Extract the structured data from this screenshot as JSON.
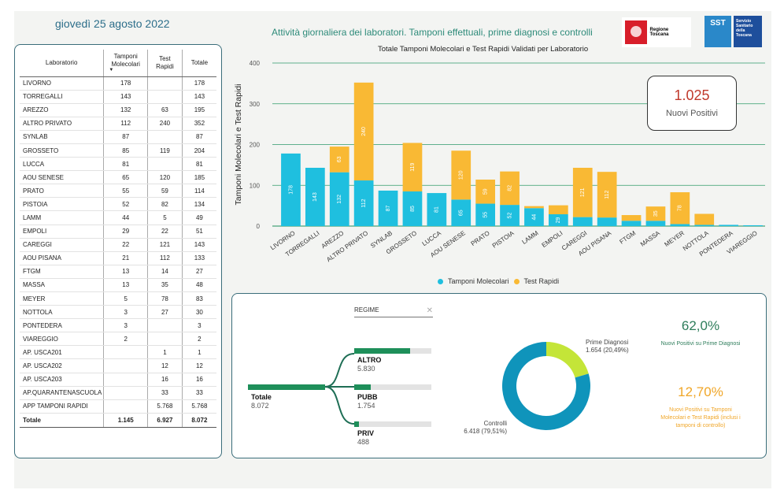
{
  "header": {
    "date": "giovedì 25 agosto 2022",
    "title": "Attività giornaliera dei laboratori. Tamponi effettuali, prime diagnosi e controlli",
    "logo_rt_text": "Regione Toscana",
    "logo_sst_text": "SST",
    "logo_sst_sub": "Servizio Sanitario della Toscana"
  },
  "table": {
    "headers": [
      "Laboratorio",
      "Tamponi Molecolari",
      "Test Rapidi",
      "Totale"
    ],
    "rows": [
      [
        "LIVORNO",
        "178",
        "",
        "178"
      ],
      [
        "TORREGALLI",
        "143",
        "",
        "143"
      ],
      [
        "AREZZO",
        "132",
        "63",
        "195"
      ],
      [
        "ALTRO PRIVATO",
        "112",
        "240",
        "352"
      ],
      [
        "SYNLAB",
        "87",
        "",
        "87"
      ],
      [
        "GROSSETO",
        "85",
        "119",
        "204"
      ],
      [
        "LUCCA",
        "81",
        "",
        "81"
      ],
      [
        "AOU SENESE",
        "65",
        "120",
        "185"
      ],
      [
        "PRATO",
        "55",
        "59",
        "114"
      ],
      [
        "PISTOIA",
        "52",
        "82",
        "134"
      ],
      [
        "LAMM",
        "44",
        "5",
        "49"
      ],
      [
        "EMPOLI",
        "29",
        "22",
        "51"
      ],
      [
        "CAREGGI",
        "22",
        "121",
        "143"
      ],
      [
        "AOU PISANA",
        "21",
        "112",
        "133"
      ],
      [
        "FTGM",
        "13",
        "14",
        "27"
      ],
      [
        "MASSA",
        "13",
        "35",
        "48"
      ],
      [
        "MEYER",
        "5",
        "78",
        "83"
      ],
      [
        "NOTTOLA",
        "3",
        "27",
        "30"
      ],
      [
        "PONTEDERA",
        "3",
        "",
        "3"
      ],
      [
        "VIAREGGIO",
        "2",
        "",
        "2"
      ],
      [
        "AP. USCA201",
        "",
        "1",
        "1"
      ],
      [
        "AP. USCA202",
        "",
        "12",
        "12"
      ],
      [
        "AP. USCA203",
        "",
        "16",
        "16"
      ],
      [
        "AP.QUARANTENASCUOLA",
        "",
        "33",
        "33"
      ],
      [
        "APP TAMPONI RAPIDI",
        "",
        "5.768",
        "5.768"
      ]
    ],
    "total": [
      "Totale",
      "1.145",
      "6.927",
      "8.072"
    ]
  },
  "kpi": {
    "value": "1.025",
    "label": "Nuovi Positivi"
  },
  "chart_data": {
    "type": "bar",
    "title": "Totale Tamponi Molecolari e Test Rapidi Validati per Laboratorio",
    "ylabel": "Tamponi Molecolari e Test Rapidi",
    "ylim": [
      0,
      400
    ],
    "yticks": [
      "0",
      "100",
      "200",
      "300",
      "400"
    ],
    "categories": [
      "LIVORNO",
      "TORREGALLI",
      "AREZZO",
      "ALTRO PRIVATO",
      "SYNLAB",
      "GROSSETO",
      "LUCCA",
      "AOU SENESE",
      "PRATO",
      "PISTOIA",
      "LAMM",
      "EMPOLI",
      "CAREGGI",
      "AOU PISANA",
      "FTGM",
      "MASSA",
      "MEYER",
      "NOTTOLA",
      "PONTEDERA",
      "VIAREGGIO"
    ],
    "stacked": true,
    "series": [
      {
        "name": "Tamponi Molecolari",
        "color": "#1fbfdf",
        "values": [
          178,
          143,
          132,
          112,
          87,
          85,
          81,
          65,
          55,
          52,
          44,
          29,
          22,
          21,
          13,
          13,
          5,
          3,
          3,
          2
        ]
      },
      {
        "name": "Test Rapidi",
        "color": "#f9b934",
        "values": [
          0,
          0,
          63,
          240,
          0,
          119,
          0,
          120,
          59,
          82,
          5,
          22,
          121,
          112,
          14,
          35,
          78,
          27,
          0,
          0
        ]
      }
    ],
    "legend": "bottom"
  },
  "decomposition": {
    "filter_label": "REGIME",
    "root": {
      "label": "Totale",
      "value": "8.072"
    },
    "children": [
      {
        "label": "ALTRO",
        "value": "5.830",
        "share": 0.722
      },
      {
        "label": "PUBB",
        "value": "1.754",
        "share": 0.217
      },
      {
        "label": "PRIV",
        "value": "488",
        "share": 0.06
      }
    ]
  },
  "donut": {
    "segments": [
      {
        "name": "Prime Diagnosi",
        "value": "1.654 (20,49%)",
        "share": 0.2049,
        "color": "#c4e538"
      },
      {
        "name": "Controlli",
        "value": "6.418 (79,51%)",
        "share": 0.7951,
        "color": "#0f94bb"
      }
    ]
  },
  "percentages": {
    "p1_value": "62,0%",
    "p1_label": "Nuovi Positivi su Prime Diagnosi",
    "p2_value": "12,70%",
    "p2_label": "Nuovi Positivi su Tamponi Molecolari e Test Rapidi (inclusi i tamponi di controllo)"
  }
}
